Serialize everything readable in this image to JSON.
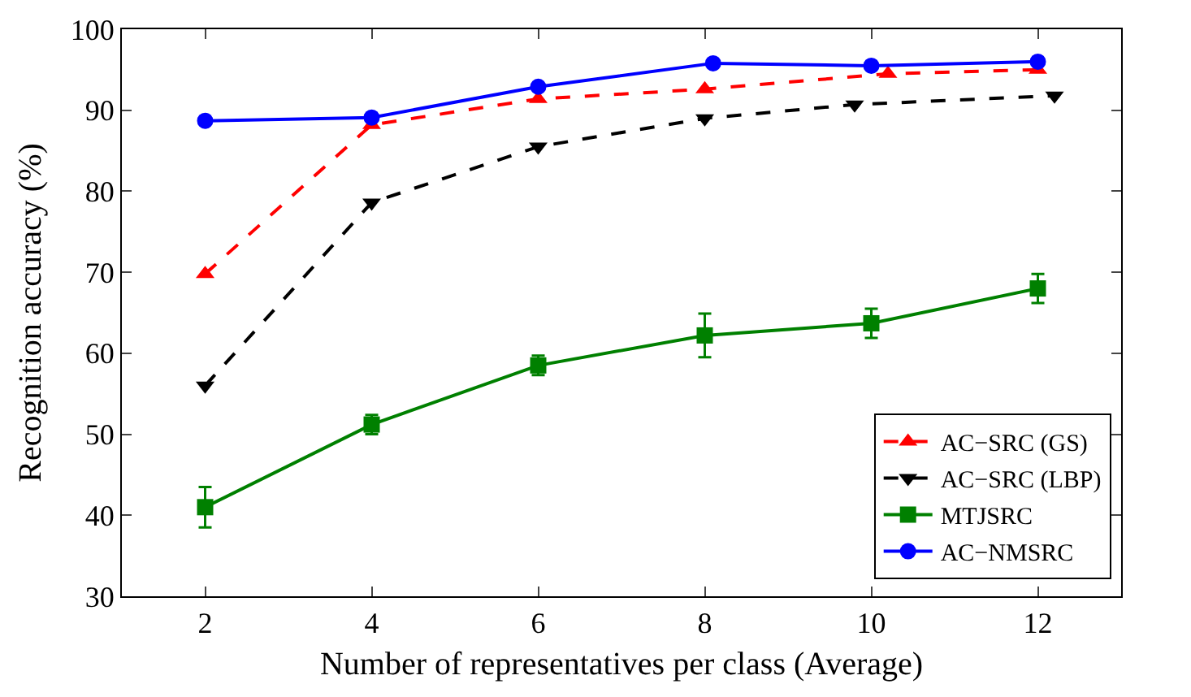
{
  "chart_data": {
    "type": "line",
    "xlabel": "Number of representatives per class (Average)",
    "ylabel": "Recognition accuracy (%)",
    "x": [
      2,
      4,
      6,
      8,
      10,
      12
    ],
    "xlim": [
      1,
      13
    ],
    "xticks": [
      2,
      4,
      6,
      8,
      10,
      12
    ],
    "ylim": [
      30,
      100
    ],
    "yticks": [
      30,
      40,
      50,
      60,
      70,
      80,
      90,
      100
    ],
    "grid": false,
    "legend": "bottom right",
    "series": [
      {
        "name": "AC−SRC (GS)",
        "color": "#ff0000",
        "marker": "triangle",
        "line_style": "dashed",
        "x": [
          2,
          4,
          6,
          8,
          10.2,
          12
        ],
        "values": [
          69.8,
          88.2,
          91.4,
          92.6,
          94.5,
          95
        ]
      },
      {
        "name": "AC−SRC (LBP)",
        "color": "#000000",
        "marker": "triangle-down",
        "line_style": "dashed",
        "x": [
          2,
          4,
          6,
          8,
          9.8,
          12.2
        ],
        "values": [
          56,
          78.6,
          85.5,
          89,
          90.7,
          91.8
        ]
      },
      {
        "name": "MTJSRC",
        "color": "#008000",
        "marker": "square",
        "line_style": "solid",
        "values": [
          41,
          51.2,
          58.5,
          62.2,
          63.7,
          68
        ],
        "errors": [
          2.5,
          1.2,
          1.2,
          2.7,
          1.8,
          1.8
        ]
      },
      {
        "name": "AC−NMSRC",
        "color": "#0000ff",
        "marker": "circle",
        "line_style": "solid",
        "x": [
          2,
          4,
          6,
          8.1,
          10,
          12
        ],
        "values": [
          88.7,
          89.1,
          92.9,
          95.8,
          95.5,
          96
        ]
      }
    ]
  }
}
